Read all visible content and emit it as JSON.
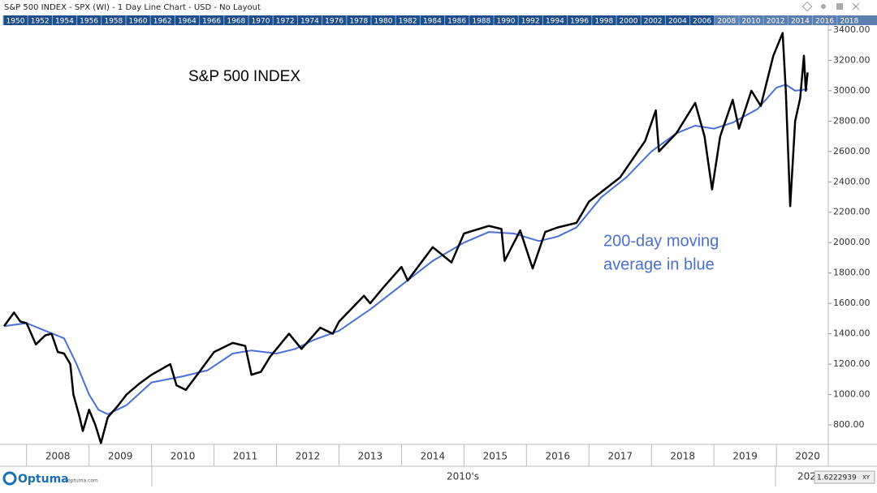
{
  "window_title": "S&P 500 INDEX - SPX (WI) - 1 Day Line Chart - USD - No Layout",
  "year_strip": [
    "1950",
    "1952",
    "1954",
    "1956",
    "1958",
    "1960",
    "1962",
    "1964",
    "1966",
    "1968",
    "1970",
    "1972",
    "1974",
    "1976",
    "1978",
    "1980",
    "1982",
    "1984",
    "1986",
    "1988",
    "1990",
    "1992",
    "1994",
    "1996",
    "1998",
    "2000",
    "2002",
    "2004",
    "2006",
    "2008",
    "2010",
    "2012",
    "2014",
    "2016",
    "2018"
  ],
  "decade_label": "2010's",
  "next_decade_label": "202",
  "scale_value": "1.6222939",
  "scale_mode": "XY",
  "brand": "Optuma",
  "brand_url": "optuma.com",
  "chart_data": {
    "type": "line",
    "title": "S&P 500 INDEX",
    "annotation": [
      "200-day moving",
      "average in blue"
    ],
    "xlim": [
      2007.64,
      2020.83
    ],
    "xticks": [
      {
        "value": 2008.5,
        "label": "2008"
      },
      {
        "value": 2009.5,
        "label": "2009"
      },
      {
        "value": 2010.5,
        "label": "2010"
      },
      {
        "value": 2011.5,
        "label": "2011"
      },
      {
        "value": 2012.5,
        "label": "2012"
      },
      {
        "value": 2013.5,
        "label": "2013"
      },
      {
        "value": 2014.5,
        "label": "2014"
      },
      {
        "value": 2015.5,
        "label": "2015"
      },
      {
        "value": 2016.5,
        "label": "2016"
      },
      {
        "value": 2017.5,
        "label": "2017"
      },
      {
        "value": 2018.5,
        "label": "2018"
      },
      {
        "value": 2019.5,
        "label": "2019"
      },
      {
        "value": 2020.5,
        "label": "2020"
      }
    ],
    "ylim": [
      672,
      3421
    ],
    "yticks": [
      {
        "value": 800,
        "label": "800.00"
      },
      {
        "value": 1000,
        "label": "1000.00"
      },
      {
        "value": 1200,
        "label": "1200.00"
      },
      {
        "value": 1400,
        "label": "1400.00"
      },
      {
        "value": 1600,
        "label": "1600.00"
      },
      {
        "value": 1800,
        "label": "1800.00"
      },
      {
        "value": 2000,
        "label": "2000.00"
      },
      {
        "value": 2200,
        "label": "2200.00"
      },
      {
        "value": 2400,
        "label": "2400.00"
      },
      {
        "value": 2600,
        "label": "2600.00"
      },
      {
        "value": 2800,
        "label": "2800.00"
      },
      {
        "value": 3000,
        "label": "3000.00"
      },
      {
        "value": 3200,
        "label": "3200.00"
      },
      {
        "value": 3400,
        "label": "3400.00"
      }
    ],
    "series": [
      {
        "color": "#000000",
        "x": [
          2007.64,
          2007.8,
          2007.9,
          2008.0,
          2008.15,
          2008.3,
          2008.4,
          2008.5,
          2008.6,
          2008.7,
          2008.75,
          2008.85,
          2008.9,
          2009.0,
          2009.1,
          2009.19,
          2009.3,
          2009.45,
          2009.6,
          2009.8,
          2010.0,
          2010.3,
          2010.4,
          2010.55,
          2010.75,
          2011.0,
          2011.3,
          2011.5,
          2011.6,
          2011.75,
          2011.9,
          2012.2,
          2012.4,
          2012.7,
          2012.9,
          2013.0,
          2013.4,
          2013.5,
          2013.7,
          2014.0,
          2014.1,
          2014.5,
          2014.8,
          2015.0,
          2015.4,
          2015.6,
          2015.65,
          2015.9,
          2016.1,
          2016.3,
          2016.5,
          2016.8,
          2017.0,
          2017.5,
          2017.9,
          2018.07,
          2018.12,
          2018.4,
          2018.7,
          2018.85,
          2018.97,
          2019.1,
          2019.3,
          2019.4,
          2019.6,
          2019.75,
          2019.95,
          2020.1,
          2020.15,
          2020.22,
          2020.3,
          2020.38,
          2020.44,
          2020.47,
          2020.5
        ],
        "values": [
          1450,
          1540,
          1480,
          1470,
          1330,
          1390,
          1400,
          1280,
          1270,
          1200,
          1000,
          850,
          760,
          900,
          800,
          680,
          850,
          920,
          1000,
          1070,
          1130,
          1200,
          1060,
          1030,
          1140,
          1280,
          1340,
          1320,
          1130,
          1150,
          1250,
          1400,
          1300,
          1440,
          1400,
          1480,
          1650,
          1600,
          1700,
          1840,
          1750,
          1970,
          1870,
          2060,
          2110,
          2090,
          1880,
          2080,
          1830,
          2070,
          2100,
          2130,
          2270,
          2430,
          2670,
          2870,
          2600,
          2720,
          2920,
          2700,
          2350,
          2700,
          2940,
          2750,
          3000,
          2900,
          3230,
          3380,
          3000,
          2240,
          2800,
          2950,
          3230,
          3000,
          3120
        ]
      },
      {
        "color": "#4a6fd6",
        "x": [
          2007.64,
          2008.0,
          2008.3,
          2008.6,
          2008.8,
          2009.0,
          2009.15,
          2009.3,
          2009.6,
          2010.0,
          2010.5,
          2010.9,
          2011.3,
          2011.6,
          2012.0,
          2012.3,
          2012.6,
          2013.0,
          2013.5,
          2014.0,
          2014.5,
          2015.0,
          2015.4,
          2015.8,
          2016.2,
          2016.5,
          2016.8,
          2017.2,
          2017.6,
          2018.0,
          2018.4,
          2018.7,
          2019.0,
          2019.3,
          2019.7,
          2020.0,
          2020.15,
          2020.3,
          2020.5
        ],
        "values": [
          1450,
          1470,
          1420,
          1370,
          1200,
          1000,
          900,
          870,
          930,
          1080,
          1120,
          1160,
          1270,
          1290,
          1270,
          1300,
          1360,
          1420,
          1560,
          1720,
          1880,
          2000,
          2070,
          2060,
          2010,
          2040,
          2100,
          2300,
          2430,
          2600,
          2720,
          2770,
          2750,
          2790,
          2880,
          3020,
          3040,
          3000,
          3010
        ]
      }
    ]
  }
}
